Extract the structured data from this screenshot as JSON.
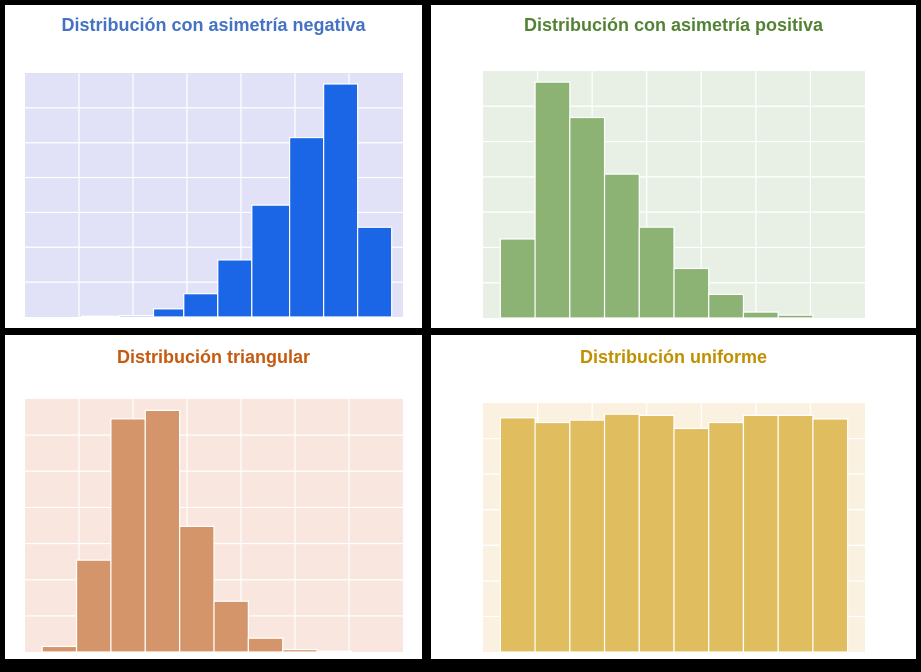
{
  "chart_data": [
    {
      "type": "bar",
      "title": "Distribución con asimetría negativa",
      "colors": {
        "title": "#4472c4",
        "bar": "#1a66e6",
        "background": "#e1e2f7",
        "grid": "#ffffff"
      },
      "x_range": [
        0,
        10
      ],
      "ylim": [
        0,
        1
      ],
      "bins": [
        {
          "x0": 1.5,
          "x1": 2.5,
          "value": 0.003
        },
        {
          "x0": 2.5,
          "x1": 3.4,
          "value": 0.006
        },
        {
          "x0": 3.4,
          "x1": 4.2,
          "value": 0.035
        },
        {
          "x0": 4.2,
          "x1": 5.1,
          "value": 0.1
        },
        {
          "x0": 5.1,
          "x1": 6.0,
          "value": 0.245
        },
        {
          "x0": 6.0,
          "x1": 7.0,
          "value": 0.48
        },
        {
          "x0": 7.0,
          "x1": 7.9,
          "value": 0.77
        },
        {
          "x0": 7.9,
          "x1": 8.8,
          "value": 1.0
        },
        {
          "x0": 8.8,
          "x1": 9.7,
          "value": 0.385
        }
      ]
    },
    {
      "type": "bar",
      "title": "Distribución con asimetría positiva",
      "colors": {
        "title": "#548235",
        "bar": "#8db374",
        "background": "#e8f0e6",
        "grid": "#ffffff"
      },
      "x_range": [
        0,
        11
      ],
      "ylim": [
        0,
        1
      ],
      "bins": [
        {
          "x0": 0.5,
          "x1": 1.5,
          "value": 0.335
        },
        {
          "x0": 1.5,
          "x1": 2.5,
          "value": 1.0
        },
        {
          "x0": 2.5,
          "x1": 3.5,
          "value": 0.85
        },
        {
          "x0": 3.5,
          "x1": 4.5,
          "value": 0.61
        },
        {
          "x0": 4.5,
          "x1": 5.5,
          "value": 0.385
        },
        {
          "x0": 5.5,
          "x1": 6.5,
          "value": 0.21
        },
        {
          "x0": 6.5,
          "x1": 7.5,
          "value": 0.1
        },
        {
          "x0": 7.5,
          "x1": 8.5,
          "value": 0.025
        },
        {
          "x0": 8.5,
          "x1": 9.5,
          "value": 0.012
        }
      ]
    },
    {
      "type": "bar",
      "title": "Distribución triangular",
      "colors": {
        "title": "#c55a11",
        "bar": "#d5956a",
        "background": "#f9e7df",
        "grid": "#ffffff"
      },
      "x_range": [
        0,
        11
      ],
      "ylim": [
        0,
        1
      ],
      "bins": [
        {
          "x0": 0.5,
          "x1": 1.5,
          "value": 0.023
        },
        {
          "x0": 1.5,
          "x1": 2.5,
          "value": 0.38
        },
        {
          "x0": 2.5,
          "x1": 3.5,
          "value": 0.965
        },
        {
          "x0": 3.5,
          "x1": 4.5,
          "value": 1.0
        },
        {
          "x0": 4.5,
          "x1": 5.5,
          "value": 0.52
        },
        {
          "x0": 5.5,
          "x1": 6.5,
          "value": 0.21
        },
        {
          "x0": 6.5,
          "x1": 7.5,
          "value": 0.057
        },
        {
          "x0": 7.5,
          "x1": 8.5,
          "value": 0.01
        },
        {
          "x0": 8.5,
          "x1": 9.5,
          "value": 0.003
        }
      ]
    },
    {
      "type": "bar",
      "title": "Distribución uniforme",
      "colors": {
        "title": "#bf9000",
        "bar": "#e0bd5e",
        "background": "#fbf1e1",
        "grid": "#ffffff"
      },
      "x_range": [
        0,
        11
      ],
      "ylim": [
        0,
        1
      ],
      "bins": [
        {
          "x0": 0.5,
          "x1": 1.5,
          "value": 0.985
        },
        {
          "x0": 1.5,
          "x1": 2.5,
          "value": 0.965
        },
        {
          "x0": 2.5,
          "x1": 3.5,
          "value": 0.975
        },
        {
          "x0": 3.5,
          "x1": 4.5,
          "value": 1.0
        },
        {
          "x0": 4.5,
          "x1": 5.5,
          "value": 0.995
        },
        {
          "x0": 5.5,
          "x1": 6.5,
          "value": 0.94
        },
        {
          "x0": 6.5,
          "x1": 7.5,
          "value": 0.965
        },
        {
          "x0": 7.5,
          "x1": 8.5,
          "value": 0.995
        },
        {
          "x0": 8.5,
          "x1": 9.5,
          "value": 0.995
        },
        {
          "x0": 9.5,
          "x1": 10.5,
          "value": 0.98
        }
      ]
    }
  ]
}
